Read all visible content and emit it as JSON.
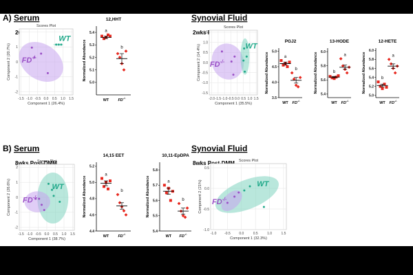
{
  "colors": {
    "wt": "#1FA889",
    "fd": "#9A4FC6",
    "wt_fill": "#7FD3C0",
    "fd_fill": "#C7A4EE",
    "marker": "#E8281F",
    "dot": "#333333"
  },
  "panels": {
    "A": {
      "letter": "A)",
      "left_title": "Serum",
      "right_title": "Synovial Fluid",
      "left_subtitle": "2wks Post-DMM",
      "right_subtitle": "2wks Post-DMM"
    },
    "B": {
      "letter": "B)",
      "left_title": "Serum",
      "right_title": "Synovial Fluid",
      "left_subtitle": "8wks Post-DMM",
      "right_subtitle": "8wks Post-DMM"
    }
  },
  "chart_data": [
    {
      "id": "A-serum-scores",
      "type": "scatter",
      "title": "Scores Plot",
      "xlabel": "Component 1 (26.4%)",
      "ylabel": "Component 2 (20.7%)",
      "xlim": [
        -1.6,
        1.6
      ],
      "ylim": [
        -2.2,
        2.2
      ],
      "xticks": [
        -1.5,
        -1.0,
        -0.5,
        0.0,
        0.5,
        1.0,
        1.5
      ],
      "yticks": [
        -2,
        -1,
        0,
        1,
        2
      ],
      "group_labels": [
        "WT",
        "FD-/-"
      ],
      "ellipses": [
        {
          "group": "FD-/-",
          "cx": -0.3,
          "cy": 0.0,
          "rx": 1.05,
          "ry": 1.6,
          "angle": -55
        },
        {
          "group": "WT",
          "cx": 0.72,
          "cy": 1.15,
          "rx": 0.3,
          "ry": 0.06,
          "angle": 0
        }
      ],
      "points": [
        {
          "group": "FD-/-",
          "x": -0.85,
          "y": 0.95
        },
        {
          "group": "FD-/-",
          "x": -0.7,
          "y": 0.3
        },
        {
          "group": "FD-/-",
          "x": -0.3,
          "y": 0.55
        },
        {
          "group": "FD-/-",
          "x": 0.1,
          "y": -0.75
        },
        {
          "group": "WT",
          "x": 0.6,
          "y": 1.15
        },
        {
          "group": "WT",
          "x": 0.75,
          "y": 1.15
        },
        {
          "group": "WT",
          "x": 0.9,
          "y": 1.15
        }
      ]
    },
    {
      "id": "A-serum-12HHT",
      "type": "scatter",
      "title": "12,HHT",
      "ylabel": "Normalized Abundance",
      "categories": [
        "WT",
        "FD-/-"
      ],
      "ylim": [
        4.9,
        5.45
      ],
      "yticks": [
        5.0,
        5.1,
        5.2,
        5.3,
        5.4
      ],
      "letters": [
        "a",
        "b"
      ],
      "groups": [
        {
          "values": [
            5.37,
            5.35,
            5.36,
            5.38,
            5.37
          ],
          "mean": 5.36,
          "sem": 0.01
        },
        {
          "values": [
            5.23,
            5.2,
            5.15,
            5.1,
            5.25
          ],
          "mean": 5.19,
          "sem": 0.04
        }
      ]
    },
    {
      "id": "A-sf-scores",
      "type": "scatter",
      "title": "Scores Plot",
      "xlabel": "Component 1 (35.5%)",
      "ylabel": "Component 2 (14.4%)",
      "xlim": [
        -2.2,
        1.6
      ],
      "ylim": [
        -1.6,
        1.6
      ],
      "xticks": [
        -2.0,
        -1.5,
        -1.0,
        -0.5,
        0.0,
        0.5,
        1.0,
        1.5
      ],
      "yticks": [
        -1.5,
        -1.0,
        -0.5,
        0.0,
        0.5,
        1.0,
        1.5
      ],
      "group_labels": [
        "WT",
        "FD-/-"
      ],
      "ellipses": [
        {
          "group": "FD-/-",
          "cx": -0.75,
          "cy": 0.05,
          "rx": 1.25,
          "ry": 0.9,
          "angle": -15
        },
        {
          "group": "WT",
          "cx": 0.62,
          "cy": 0.3,
          "rx": 0.35,
          "ry": 0.9,
          "angle": 0
        }
      ],
      "points": [
        {
          "group": "FD-/-",
          "x": -1.2,
          "y": 0.55
        },
        {
          "group": "FD-/-",
          "x": -0.45,
          "y": 0.05
        },
        {
          "group": "FD-/-",
          "x": -0.3,
          "y": -0.6
        },
        {
          "group": "FD-/-",
          "x": -0.2,
          "y": 0.3
        },
        {
          "group": "WT",
          "x": 0.55,
          "y": 0.7
        },
        {
          "group": "WT",
          "x": 0.5,
          "y": 0.1
        },
        {
          "group": "WT",
          "x": 0.6,
          "y": -0.45
        },
        {
          "group": "WT",
          "x": 0.75,
          "y": 0.3
        }
      ]
    },
    {
      "id": "A-sf-PGJ2",
      "type": "scatter",
      "title": "PGJ2",
      "ylabel": "Normalized Abundance",
      "categories": [
        "WT",
        "FD-/-"
      ],
      "ylim": [
        3.5,
        5.1
      ],
      "yticks": [
        3.5,
        4.0,
        4.5,
        5.0
      ],
      "letters": [
        "a",
        "b"
      ],
      "groups": [
        {
          "values": [
            4.7,
            4.55,
            4.6,
            4.5,
            4.65
          ],
          "mean": 4.6,
          "sem": 0.05
        },
        {
          "values": [
            4.3,
            4.1,
            3.9,
            3.85,
            4.15
          ],
          "mean": 4.06,
          "sem": 0.09
        }
      ]
    },
    {
      "id": "A-sf-13HODE",
      "type": "scatter",
      "title": "13-HODE",
      "ylabel": "Normalized Abundance",
      "categories": [
        "WT",
        "FD-/-"
      ],
      "ylim": [
        5.35,
        6.05
      ],
      "yticks": [
        5.4,
        5.6,
        5.8,
        6.0
      ],
      "letters": [
        "b",
        "a"
      ],
      "groups": [
        {
          "values": [
            5.65,
            5.63,
            5.62,
            5.64,
            5.66
          ],
          "mean": 5.64,
          "sem": 0.01
        },
        {
          "values": [
            5.9,
            5.8,
            5.75,
            5.7,
            5.78
          ],
          "mean": 5.78,
          "sem": 0.03
        }
      ]
    },
    {
      "id": "A-sf-12HETE",
      "type": "scatter",
      "title": "12-HETE",
      "ylabel": "Normalized Abundance",
      "categories": [
        "WT",
        "FD-/-"
      ],
      "ylim": [
        4.95,
        6.05
      ],
      "yticks": [
        5.0,
        5.2,
        5.4,
        5.6,
        5.8,
        6.0
      ],
      "letters": [
        "b",
        "a"
      ],
      "groups": [
        {
          "values": [
            5.3,
            5.2,
            5.15,
            5.25,
            5.18
          ],
          "mean": 5.22,
          "sem": 0.03
        },
        {
          "values": [
            5.8,
            5.7,
            5.6,
            5.5,
            5.65
          ],
          "mean": 5.65,
          "sem": 0.05
        }
      ]
    },
    {
      "id": "B-serum-scores",
      "type": "scatter",
      "title": "Scores Plot",
      "xlabel": "Component 1 (38.7%)",
      "ylabel": "Component 2 (26.6%)",
      "xlim": [
        -1.6,
        1.6
      ],
      "ylim": [
        -2.2,
        2.2
      ],
      "xticks": [
        -1.5,
        -1.0,
        -0.5,
        0.0,
        0.5,
        1.0,
        1.5
      ],
      "yticks": [
        -2,
        -1,
        0,
        1,
        2
      ],
      "group_labels": [
        "WT",
        "FD-/-"
      ],
      "ellipses": [
        {
          "group": "WT",
          "cx": 0.35,
          "cy": -0.05,
          "rx": 0.9,
          "ry": 1.7,
          "angle": 0
        },
        {
          "group": "FD-/-",
          "cx": -0.55,
          "cy": -0.3,
          "rx": 0.75,
          "ry": 0.7,
          "angle": 0
        }
      ],
      "points": [
        {
          "group": "FD-/-",
          "x": -0.65,
          "y": -0.1
        },
        {
          "group": "FD-/-",
          "x": -0.45,
          "y": -0.1
        },
        {
          "group": "FD-/-",
          "x": -0.3,
          "y": -0.5
        },
        {
          "group": "FD-/-",
          "x": -0.15,
          "y": -0.85
        },
        {
          "group": "WT",
          "x": 0.1,
          "y": 0.9
        },
        {
          "group": "WT",
          "x": 0.3,
          "y": 0.5
        },
        {
          "group": "WT",
          "x": 0.4,
          "y": 0.1
        },
        {
          "group": "WT",
          "x": 0.75,
          "y": -0.3
        }
      ]
    },
    {
      "id": "B-serum-EET",
      "type": "scatter",
      "title": "14,15 EET",
      "ylabel": "Normalized Abundance",
      "categories": [
        "WT",
        "FD-/-"
      ],
      "ylim": [
        4.4,
        5.25
      ],
      "yticks": [
        4.4,
        4.6,
        4.8,
        5.0,
        5.2
      ],
      "letters": [
        "a",
        "b"
      ],
      "groups": [
        {
          "values": [
            5.05,
            4.95,
            5.0,
            4.92,
            5.02
          ],
          "mean": 4.99,
          "sem": 0.03
        },
        {
          "values": [
            4.85,
            4.75,
            4.7,
            4.65,
            4.6
          ],
          "mean": 4.71,
          "sem": 0.04
        }
      ]
    },
    {
      "id": "B-serum-EpDPA",
      "type": "scatter",
      "title": "10,11-EpDPA",
      "ylabel": "Normalized Abundance",
      "categories": [
        "WT",
        "FD-/-"
      ],
      "ylim": [
        5.4,
        5.85
      ],
      "yticks": [
        5.4,
        5.5,
        5.6,
        5.7,
        5.8
      ],
      "letters": [
        "a",
        "b"
      ],
      "groups": [
        {
          "values": [
            5.7,
            5.65,
            5.68,
            5.6,
            5.66
          ],
          "mean": 5.66,
          "sem": 0.02
        },
        {
          "values": [
            5.58,
            5.53,
            5.5,
            5.49,
            5.55
          ],
          "mean": 5.53,
          "sem": 0.02
        }
      ]
    },
    {
      "id": "B-sf-scores",
      "type": "scatter",
      "title": "Scores Plot",
      "xlabel": "Component 1 (32.3%)",
      "ylabel": "Component 2 (21%)",
      "xlim": [
        -1.1,
        1.6
      ],
      "ylim": [
        -1.0,
        0.6
      ],
      "xticks": [
        -1.0,
        -0.5,
        0.0,
        0.5,
        1.0,
        1.5
      ],
      "yticks": [
        -1.0,
        -0.5,
        0.0,
        0.5
      ],
      "group_labels": [
        "WT",
        "FD-/-"
      ],
      "ellipses": [
        {
          "group": "WT",
          "cx": 0.2,
          "cy": -0.15,
          "rx": 1.2,
          "ry": 0.35,
          "angle": -22
        },
        {
          "group": "FD-/-",
          "cx": -0.35,
          "cy": -0.3,
          "rx": 0.45,
          "ry": 0.18,
          "angle": -45
        }
      ],
      "points": [
        {
          "group": "FD-/-",
          "x": -0.5,
          "y": -0.35
        },
        {
          "group": "FD-/-",
          "x": -0.25,
          "y": -0.2
        },
        {
          "group": "FD-/-",
          "x": -0.1,
          "y": -0.1
        },
        {
          "group": "WT",
          "x": 0.1,
          "y": -0.05
        },
        {
          "group": "WT",
          "x": 0.3,
          "y": 0.05
        },
        {
          "group": "WT",
          "x": 0.8,
          "y": -0.45
        }
      ]
    }
  ]
}
